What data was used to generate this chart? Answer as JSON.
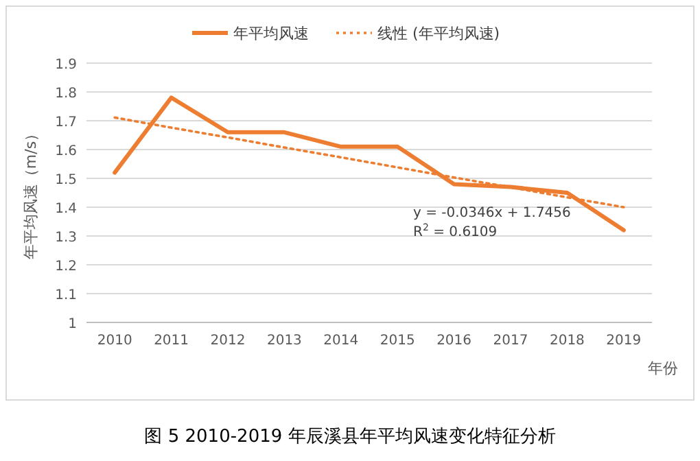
{
  "chart_data": {
    "type": "line",
    "title": "图 5 2010-2019 年辰溪县年平均风速变化特征分析",
    "categories": [
      "2010",
      "2011",
      "2012",
      "2013",
      "2014",
      "2015",
      "2016",
      "2017",
      "2018",
      "2019"
    ],
    "xlabel": "年份",
    "ylabel": "年平均风速（m/s）",
    "series": [
      {
        "name": "年平均风速",
        "color": "#ed7d31",
        "line_style": "solid",
        "values": [
          1.52,
          1.78,
          1.66,
          1.66,
          1.61,
          1.61,
          1.48,
          1.47,
          1.45,
          1.32
        ]
      },
      {
        "name": "线性 (年平均风速)",
        "color": "#ed7d31",
        "line_style": "dotted",
        "values": [
          1.711,
          1.676,
          1.642,
          1.607,
          1.573,
          1.538,
          1.503,
          1.469,
          1.434,
          1.4
        ]
      }
    ],
    "annotations": [
      "y = -0.0346x + 1.7456",
      "R$^{2}$ = 0.6109"
    ],
    "ylim": [
      1,
      1.9
    ],
    "yticks": [
      1,
      1.1,
      1.2,
      1.3,
      1.4,
      1.5,
      1.6,
      1.7,
      1.8,
      1.9
    ],
    "grid": "y",
    "legend": "top",
    "marker": "none"
  }
}
